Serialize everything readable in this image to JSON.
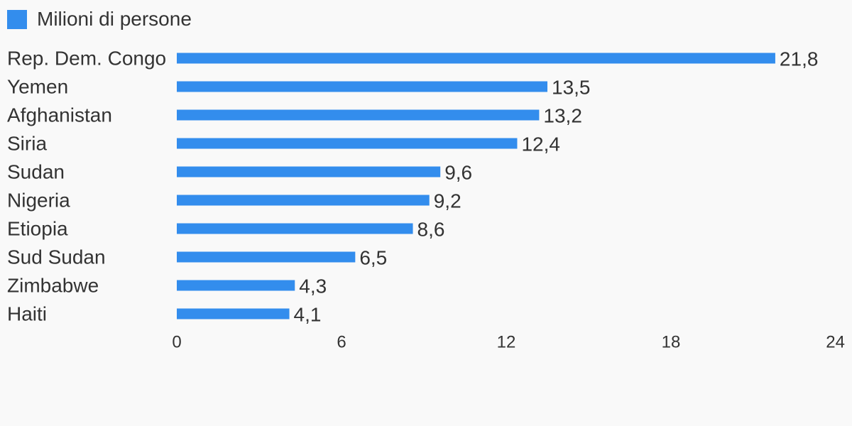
{
  "chart_data": {
    "type": "bar",
    "orientation": "horizontal",
    "categories": [
      "Rep. Dem. Congo",
      "Yemen",
      "Afghanistan",
      "Siria",
      "Sudan",
      "Nigeria",
      "Etiopia",
      "Sud Sudan",
      "Zimbabwe",
      "Haiti"
    ],
    "series": [
      {
        "name": "Milioni di persone",
        "values": [
          21.8,
          13.5,
          13.2,
          12.4,
          9.6,
          9.2,
          8.6,
          6.5,
          4.3,
          4.1
        ],
        "labels": [
          "21,8",
          "13,5",
          "13,2",
          "12,4",
          "9,6",
          "9,2",
          "8,6",
          "6,5",
          "4,3",
          "4,1"
        ]
      }
    ],
    "xlim": [
      0,
      24
    ],
    "xticks": [
      0,
      6,
      12,
      18,
      24
    ],
    "grid": false,
    "legend_position": "top-left",
    "bar_color": "#338ded"
  }
}
